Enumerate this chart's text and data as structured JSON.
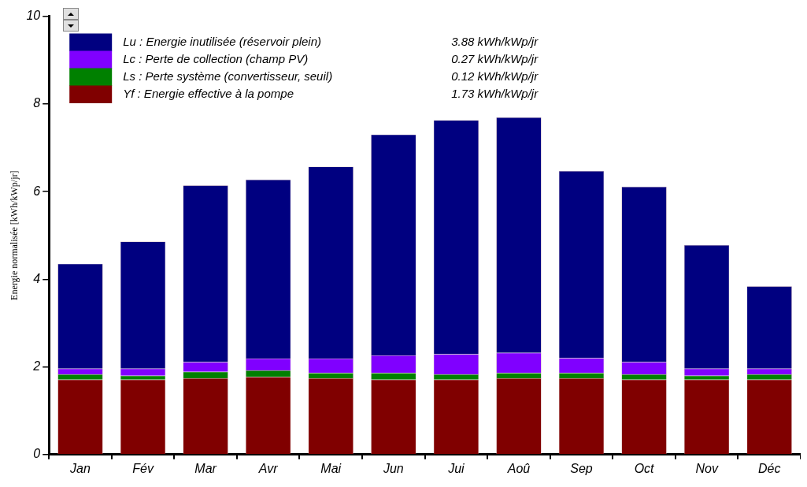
{
  "chart_data": {
    "type": "bar",
    "stacked": true,
    "ylabel": "Energie normalisée [kWh/kWp/jr]",
    "categories": [
      "Jan",
      "Fév",
      "Mar",
      "Avr",
      "Mai",
      "Jun",
      "Jui",
      "Aoû",
      "Sep",
      "Oct",
      "Nov",
      "Déc"
    ],
    "series": [
      {
        "name": "Yf : Energie effective à la pompe",
        "color": "#800000",
        "values": [
          1.71,
          1.71,
          1.74,
          1.77,
          1.74,
          1.71,
          1.71,
          1.74,
          1.74,
          1.71,
          1.71,
          1.71
        ]
      },
      {
        "name": "Ls : Perte système (convertisseur, seuil)",
        "color": "#008000",
        "values": [
          0.12,
          0.09,
          0.15,
          0.15,
          0.12,
          0.15,
          0.12,
          0.12,
          0.12,
          0.12,
          0.09,
          0.12
        ]
      },
      {
        "name": "Lc : Perte de collection (champ PV)",
        "color": "#8000ff",
        "values": [
          0.13,
          0.16,
          0.22,
          0.27,
          0.33,
          0.4,
          0.46,
          0.46,
          0.34,
          0.28,
          0.16,
          0.13
        ]
      },
      {
        "name": "Lu : Energie inutilisée (réservoir plein)",
        "color": "#000080",
        "values": [
          2.39,
          2.9,
          4.03,
          4.08,
          4.38,
          5.04,
          5.34,
          5.37,
          4.27,
          4.0,
          2.82,
          1.88
        ]
      }
    ],
    "ylim": [
      0,
      10
    ],
    "yticks": [
      0,
      2,
      4,
      6,
      8,
      10
    ],
    "grid": false,
    "legend": "top left",
    "annotations": [
      "1.73 kWh/kWp/jr",
      "0.12 kWh/kWp/jr",
      "0.27 kWh/kWp/jr",
      "3.88 kWh/kWp/jr"
    ]
  }
}
